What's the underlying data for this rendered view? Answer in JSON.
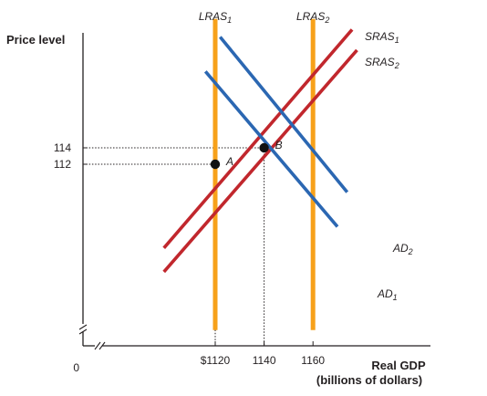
{
  "chart_data": {
    "type": "line",
    "ylabel": "Price level",
    "xlabel": "Real GDP",
    "xlabel_units": "(billions of dollars)",
    "origin_label": "0",
    "x_ticks": [
      {
        "value": 1120,
        "label": "$1120"
      },
      {
        "value": 1140,
        "label": "1140"
      },
      {
        "value": 1160,
        "label": "1160"
      }
    ],
    "y_ticks": [
      {
        "value": 114,
        "label": "114"
      },
      {
        "value": 112,
        "label": "112"
      }
    ],
    "axis_break": true,
    "colors": {
      "lras": "#f7a11a",
      "sras": "#c1272d",
      "ad": "#2b67b2",
      "axis": "#231f20"
    },
    "series": [
      {
        "name": "LRAS",
        "subscript": "1",
        "kind": "lras",
        "points": [
          [
            1120,
            129.7
          ],
          [
            1120,
            91.8
          ]
        ]
      },
      {
        "name": "LRAS",
        "subscript": "2",
        "kind": "lras",
        "points": [
          [
            1160,
            129.7
          ],
          [
            1160,
            91.8
          ]
        ]
      },
      {
        "name": "SRAS",
        "subscript": "1",
        "kind": "sras",
        "points": [
          [
            1099,
            101.8
          ],
          [
            1176,
            128.4
          ]
        ]
      },
      {
        "name": "SRAS",
        "subscript": "2",
        "kind": "sras",
        "points": [
          [
            1099,
            98.9
          ],
          [
            1178,
            125.9
          ]
        ]
      },
      {
        "name": "AD",
        "subscript": "2",
        "kind": "ad",
        "points": [
          [
            1122,
            127.5
          ],
          [
            1174,
            108.6
          ]
        ]
      },
      {
        "name": "AD",
        "subscript": "1",
        "kind": "ad",
        "points": [
          [
            1116,
            123.3
          ],
          [
            1170,
            104.4
          ]
        ]
      }
    ],
    "equilibria": [
      {
        "label": "A",
        "x": 1120,
        "y": 112
      },
      {
        "label": "B",
        "x": 1140,
        "y": 114
      }
    ]
  }
}
